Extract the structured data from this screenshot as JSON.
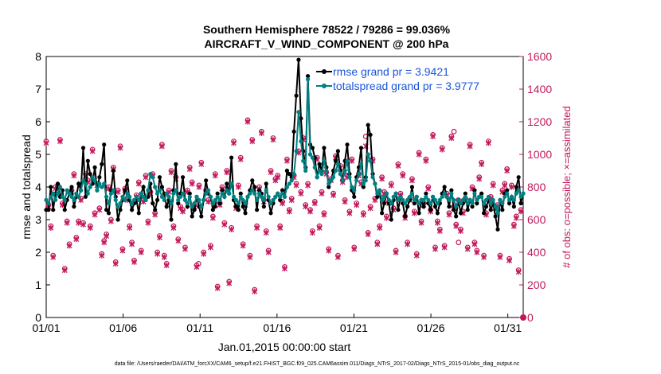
{
  "chart_data": {
    "type": "line",
    "title_line1": "Southern Hemisphere 78522 / 79286 = 99.036%",
    "title_line2": "AIRCRAFT_V_WIND_COMPONENT @ 200 hPa",
    "ylabel": "rmse and totalspread",
    "ylabel_right": "# of obs: o=possible; ×=assimilated",
    "xlabel": "Jan.01,2015 00:00:00 start",
    "footer": "data file: /Users/raeder/DAI/ATM_forcXX/CAM6_setup/f.e21.FHIST_BGC.f09_025.CAM6assim.011/Diags_NTrS_2017-02/Diags_NTrS_2015-01/obs_diag_output.nc",
    "ylim": [
      0,
      8
    ],
    "ylim_right": [
      0,
      1600
    ],
    "xlim": [
      1,
      32
    ],
    "yticks": [
      "0",
      "1",
      "2",
      "3",
      "4",
      "5",
      "6",
      "7",
      "8"
    ],
    "yticks_right": [
      "0",
      "200",
      "400",
      "600",
      "800",
      "1000",
      "1200",
      "1400",
      "1600"
    ],
    "xticks": [
      {
        "label": "01/01",
        "day": 1
      },
      {
        "label": "01/06",
        "day": 6
      },
      {
        "label": "01/11",
        "day": 11
      },
      {
        "label": "01/16",
        "day": 16
      },
      {
        "label": "01/21",
        "day": 21
      },
      {
        "label": "01/26",
        "day": 26
      },
      {
        "label": "01/31",
        "day": 31
      }
    ],
    "series": [
      {
        "name": "rmse grand pr = 3.9421",
        "color": "#000000",
        "values": [
          3.3,
          3.3,
          4.0,
          3.3,
          3.8,
          4.1,
          3.7,
          3.9,
          3.3,
          3.6,
          3.8,
          4.0,
          3.4,
          3.7,
          4.1,
          3.9,
          5.2,
          3.7,
          4.8,
          4.4,
          4.1,
          4.6,
          3.9,
          4.3,
          4.7,
          5.3,
          3.3,
          3.2,
          3.9,
          4.5,
          3.7,
          3.0,
          3.3,
          3.6,
          3.9,
          4.2,
          3.6,
          3.3,
          3.5,
          3.6,
          3.2,
          3.8,
          4.0,
          3.6,
          3.7,
          4.1,
          3.5,
          3.3,
          3.6,
          4.3,
          4.0,
          3.8,
          3.4,
          3.6,
          3.0,
          3.9,
          4.7,
          3.5,
          3.8,
          4.3,
          3.6,
          3.4,
          3.8,
          3.1,
          3.3,
          3.7,
          3.4,
          3.1,
          3.6,
          4.2,
          3.8,
          3.7,
          3.3,
          3.4,
          3.8,
          3.5,
          3.9,
          3.7,
          4.1,
          3.8,
          4.9,
          3.6,
          3.4,
          3.3,
          3.8,
          3.4,
          3.2,
          3.7,
          3.9,
          4.2,
          4.0,
          3.3,
          3.9,
          3.8,
          3.4,
          4.1,
          3.6,
          3.2,
          3.5,
          3.7,
          3.8,
          3.6,
          3.9,
          3.7,
          4.5,
          4.4,
          4.3,
          5.7,
          6.8,
          7.9,
          6.1,
          5.1,
          4.6,
          7.4,
          5.3,
          5.2,
          4.9,
          4.3,
          4.7,
          4.5,
          5.2,
          4.6,
          4.0,
          4.2,
          4.5,
          4.8,
          5.1,
          4.5,
          4.2,
          4.8,
          5.3,
          4.4,
          3.9,
          3.7,
          4.3,
          4.6,
          5.2,
          4.0,
          4.3,
          5.9,
          5.6,
          4.4,
          4.1,
          3.7,
          3.9,
          3.2,
          3.5,
          3.8,
          3.5,
          3.0,
          3.6,
          3.8,
          3.3,
          3.7,
          3.5,
          3.1,
          3.4,
          3.6,
          4.0,
          3.5,
          3.7,
          3.2,
          3.6,
          3.4,
          3.8,
          3.5,
          3.3,
          3.7,
          3.4,
          3.2,
          3.5,
          3.8,
          4.0,
          3.7,
          3.4,
          3.9,
          3.3,
          3.1,
          3.6,
          3.2,
          3.5,
          3.8,
          3.3,
          3.6,
          3.4,
          3.9,
          3.5,
          3.7,
          3.8,
          3.2,
          3.4,
          3.6,
          3.3,
          3.5,
          3.1,
          2.7,
          3.6,
          3.3,
          3.8,
          3.9,
          3.5,
          3.7,
          3.4,
          4.0,
          4.3,
          3.5,
          3.8
        ]
      },
      {
        "name": "totalspread grand pr = 3.9777",
        "color": "#008080",
        "values": [
          3.6,
          3.5,
          3.7,
          3.8,
          3.6,
          3.8,
          4.0,
          3.7,
          3.6,
          3.9,
          3.8,
          3.7,
          3.6,
          3.8,
          3.7,
          3.9,
          4.2,
          4.1,
          3.8,
          4.0,
          4.3,
          4.2,
          3.9,
          4.1,
          4.0,
          4.1,
          3.7,
          3.5,
          3.8,
          3.9,
          3.6,
          3.4,
          3.5,
          3.7,
          3.6,
          3.8,
          3.7,
          3.5,
          3.6,
          3.7,
          3.6,
          3.8,
          3.7,
          3.6,
          3.9,
          4.4,
          4.3,
          4.0,
          3.8,
          3.9,
          3.7,
          3.6,
          3.8,
          3.7,
          3.5,
          3.8,
          3.9,
          3.6,
          3.7,
          3.8,
          3.6,
          3.5,
          3.7,
          3.4,
          3.5,
          3.7,
          3.6,
          3.4,
          3.6,
          3.8,
          3.9,
          3.7,
          3.5,
          3.6,
          3.7,
          3.6,
          3.8,
          3.7,
          3.9,
          3.8,
          4.1,
          3.7,
          3.6,
          3.5,
          3.7,
          3.6,
          3.5,
          3.7,
          3.8,
          3.9,
          3.8,
          3.6,
          3.8,
          3.7,
          3.6,
          3.9,
          3.7,
          3.5,
          3.6,
          3.7,
          3.8,
          3.7,
          3.8,
          3.7,
          4.0,
          4.1,
          4.2,
          4.4,
          5.1,
          6.3,
          5.4,
          4.8,
          4.5,
          7.3,
          5.0,
          4.9,
          4.6,
          4.3,
          4.5,
          4.4,
          4.8,
          4.5,
          4.1,
          4.2,
          4.3,
          4.5,
          4.7,
          4.4,
          4.2,
          4.5,
          4.8,
          4.3,
          4.0,
          3.9,
          4.2,
          4.4,
          4.7,
          4.1,
          4.2,
          5.0,
          4.8,
          4.3,
          4.1,
          3.8,
          3.9,
          3.6,
          3.7,
          3.8,
          3.6,
          3.5,
          3.7,
          3.8,
          3.6,
          3.7,
          3.6,
          3.5,
          3.6,
          3.7,
          3.8,
          3.6,
          3.7,
          3.5,
          3.6,
          3.6,
          3.7,
          3.6,
          3.5,
          3.7,
          3.6,
          3.5,
          3.6,
          3.7,
          3.8,
          3.7,
          3.6,
          3.8,
          3.6,
          3.4,
          3.6,
          3.5,
          3.6,
          3.7,
          3.5,
          3.6,
          3.5,
          3.8,
          3.6,
          3.7,
          3.7,
          3.5,
          3.6,
          3.7,
          3.5,
          3.6,
          3.4,
          3.2,
          3.6,
          3.5,
          3.7,
          3.8,
          3.6,
          3.7,
          3.6,
          3.8,
          3.9,
          3.7,
          3.8
        ]
      },
      {
        "name": "obs possible",
        "color": "#c2185b",
        "values": [
          1080,
          690,
          560,
          380,
          800,
          810,
          1090,
          700,
          300,
          590,
          450,
          780,
          880,
          490,
          590,
          730,
          580,
          880,
          840,
          560,
          1030,
          640,
          820,
          670,
          390,
          470,
          510,
          800,
          600,
          920,
          340,
          780,
          1050,
          420,
          790,
          730,
          560,
          460,
          350,
          750,
          830,
          410,
          720,
          870,
          590,
          770,
          880,
          640,
          400,
          500,
          1060,
          380,
          330,
          780,
          900,
          560,
          860,
          480,
          680,
          660,
          430,
          780,
          920,
          830,
          690,
          320,
          810,
          950,
          400,
          780,
          720,
          440,
          620,
          880,
          190,
          700,
          800,
          580,
          900,
          220,
          550,
          1080,
          680,
          810,
          980,
          450,
          700,
          1210,
          380,
          1090,
          170,
          560,
          800,
          1140,
          720,
          530,
          410,
          900,
          1100,
          850,
          870,
          560,
          710,
          310,
          970,
          660,
          730,
          870,
          820,
          1020,
          770,
          1100,
          690,
          820,
          660,
          530,
          710,
          980,
          560,
          770,
          640,
          890,
          420,
          850,
          760,
          990,
          380,
          930,
          840,
          720,
          870,
          650,
          970,
          430,
          700,
          880,
          830,
          640,
          1110,
          520,
          680,
          970,
          730,
          460,
          560,
          860,
          770,
          620,
          710,
          820,
          670,
          410,
          940,
          760,
          880,
          620,
          460,
          730,
          850,
          650,
          390,
          1010,
          590,
          700,
          970,
          800,
          660,
          1120,
          430,
          590,
          540,
          1040,
          440,
          760,
          640,
          1110,
          680,
          570,
          720,
          540,
          650,
          730,
          430,
          1060,
          800,
          460,
          410,
          860,
          950,
          380,
          640,
          1080,
          740,
          820,
          680,
          690,
          380,
          780,
          820,
          910,
          360,
          810,
          570,
          620,
          290,
          660
        ]
      },
      {
        "name": "obs assimilated",
        "color": "#c2185b",
        "values": [
          1070,
          680,
          550,
          370,
          790,
          800,
          1080,
          690,
          290,
          580,
          440,
          770,
          870,
          480,
          580,
          720,
          570,
          870,
          830,
          550,
          1020,
          630,
          810,
          660,
          380,
          460,
          500,
          790,
          590,
          910,
          330,
          770,
          1040,
          410,
          780,
          720,
          550,
          450,
          340,
          740,
          820,
          400,
          710,
          860,
          580,
          760,
          870,
          630,
          390,
          490,
          1050,
          370,
          320,
          770,
          890,
          550,
          850,
          470,
          670,
          650,
          420,
          770,
          910,
          820,
          680,
          310,
          800,
          940,
          390,
          770,
          710,
          430,
          610,
          870,
          180,
          690,
          790,
          570,
          890,
          210,
          540,
          1070,
          670,
          800,
          970,
          440,
          690,
          1200,
          370,
          1080,
          160,
          550,
          790,
          1130,
          710,
          520,
          400,
          890,
          1090,
          840,
          860,
          550,
          700,
          300,
          960,
          650,
          720,
          860,
          810,
          1010,
          760,
          1090,
          680,
          810,
          650,
          520,
          700,
          970,
          550,
          760,
          630,
          880,
          410,
          840,
          750,
          980,
          370,
          920,
          830,
          710,
          860,
          640,
          960,
          420,
          690,
          870,
          820,
          630,
          1050,
          510,
          670,
          960,
          720,
          450,
          550,
          850,
          760,
          610,
          700,
          810,
          660,
          400,
          930,
          750,
          870,
          610,
          450,
          720,
          840,
          640,
          380,
          1000,
          580,
          690,
          960,
          790,
          650,
          1110,
          420,
          580,
          530,
          1030,
          430,
          750,
          630,
          1100,
          670,
          560,
          710,
          530,
          640,
          720,
          420,
          1050,
          790,
          450,
          400,
          850,
          940,
          370,
          630,
          1070,
          730,
          810,
          670,
          680,
          370,
          770,
          810,
          900,
          350,
          800,
          560,
          610,
          280,
          650
        ]
      }
    ]
  },
  "special_obs": {
    "circle_extra": [
      {
        "day": 27.5,
        "count": 1140
      },
      {
        "day": 20.6,
        "count": 890
      },
      {
        "day": 10.9,
        "count": 330
      },
      {
        "day": 27.8,
        "count": 460
      }
    ],
    "zero_marker": {
      "day": 32,
      "count": 0
    }
  }
}
